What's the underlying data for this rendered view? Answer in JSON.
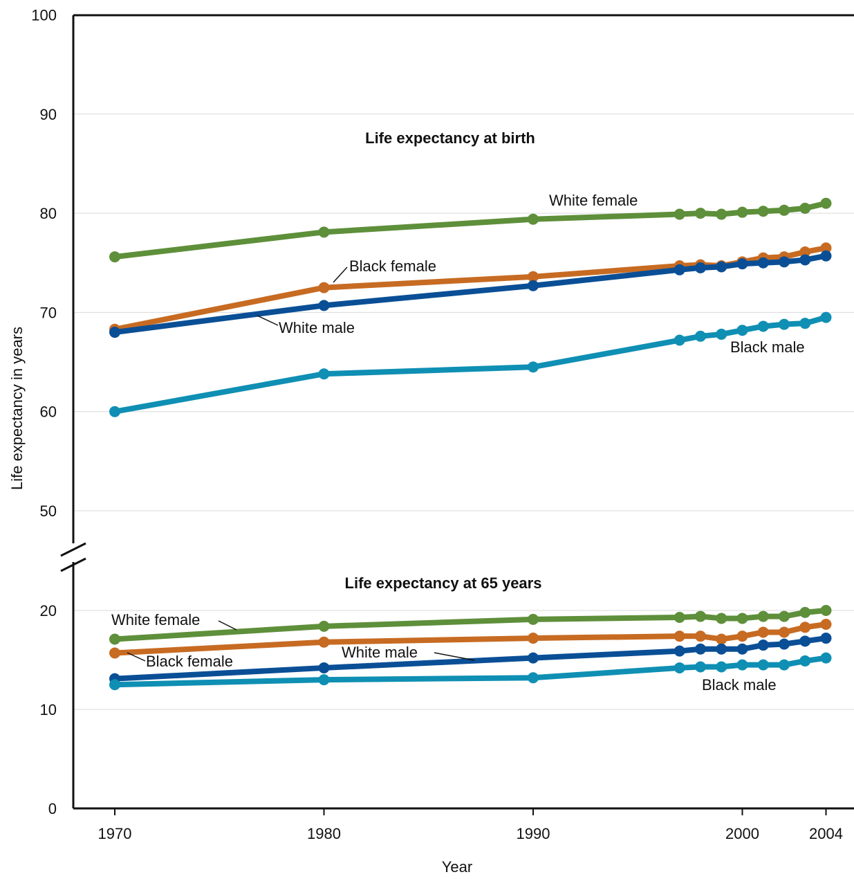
{
  "chart_data": {
    "type": "line",
    "xlabel": "Year",
    "ylabel": "Life expectancy in years",
    "x_ticks": [
      "1970",
      "1980",
      "1990",
      "2000",
      "2004"
    ],
    "ylim": [
      0,
      100
    ],
    "y_axis_break": [
      20,
      50
    ],
    "y_ticks_upper": [
      "50",
      "60",
      "70",
      "80",
      "90",
      "100"
    ],
    "y_ticks_lower": [
      "0",
      "10",
      "20"
    ],
    "grid": true,
    "panels": [
      {
        "title": "Life expectancy at birth",
        "x": [
          1970,
          1980,
          1990,
          1997,
          1998,
          1999,
          2000,
          2001,
          2002,
          2003,
          2004
        ],
        "series": [
          {
            "name": "White female",
            "color": "#5e8f3a",
            "values": [
              75.6,
              78.1,
              79.4,
              79.9,
              80.0,
              79.9,
              80.1,
              80.2,
              80.3,
              80.5,
              81.0
            ]
          },
          {
            "name": "Black female",
            "color": "#c76b22",
            "values": [
              68.3,
              72.5,
              73.6,
              74.7,
              74.8,
              74.7,
              75.1,
              75.5,
              75.6,
              76.1,
              76.5
            ]
          },
          {
            "name": "White male",
            "color": "#0a4f96",
            "values": [
              68.0,
              70.7,
              72.7,
              74.3,
              74.5,
              74.6,
              74.9,
              75.0,
              75.1,
              75.3,
              75.7
            ]
          },
          {
            "name": "Black male",
            "color": "#0f8fb3",
            "values": [
              60.0,
              63.8,
              64.5,
              67.2,
              67.6,
              67.8,
              68.2,
              68.6,
              68.8,
              68.9,
              69.5
            ]
          }
        ]
      },
      {
        "title": "Life expectancy at 65 years",
        "x": [
          1970,
          1980,
          1990,
          1997,
          1998,
          1999,
          2000,
          2001,
          2002,
          2003,
          2004
        ],
        "series": [
          {
            "name": "White female",
            "color": "#5e8f3a",
            "values": [
              17.1,
              18.4,
              19.1,
              19.3,
              19.4,
              19.2,
              19.2,
              19.4,
              19.4,
              19.8,
              20.0
            ]
          },
          {
            "name": "Black female",
            "color": "#c76b22",
            "values": [
              15.7,
              16.8,
              17.2,
              17.4,
              17.4,
              17.1,
              17.4,
              17.8,
              17.8,
              18.3,
              18.6
            ]
          },
          {
            "name": "White male",
            "color": "#0a4f96",
            "values": [
              13.1,
              14.2,
              15.2,
              15.9,
              16.1,
              16.1,
              16.1,
              16.5,
              16.6,
              16.9,
              17.2
            ]
          },
          {
            "name": "Black male",
            "color": "#0f8fb3",
            "values": [
              12.5,
              13.0,
              13.2,
              14.2,
              14.3,
              14.3,
              14.5,
              14.5,
              14.5,
              14.9,
              15.2
            ]
          }
        ]
      }
    ],
    "annotations": {
      "birth": [
        "White female",
        "Black female",
        "White male",
        "Black male"
      ],
      "age65": [
        "White female",
        "Black female",
        "White male",
        "Black male"
      ]
    }
  }
}
